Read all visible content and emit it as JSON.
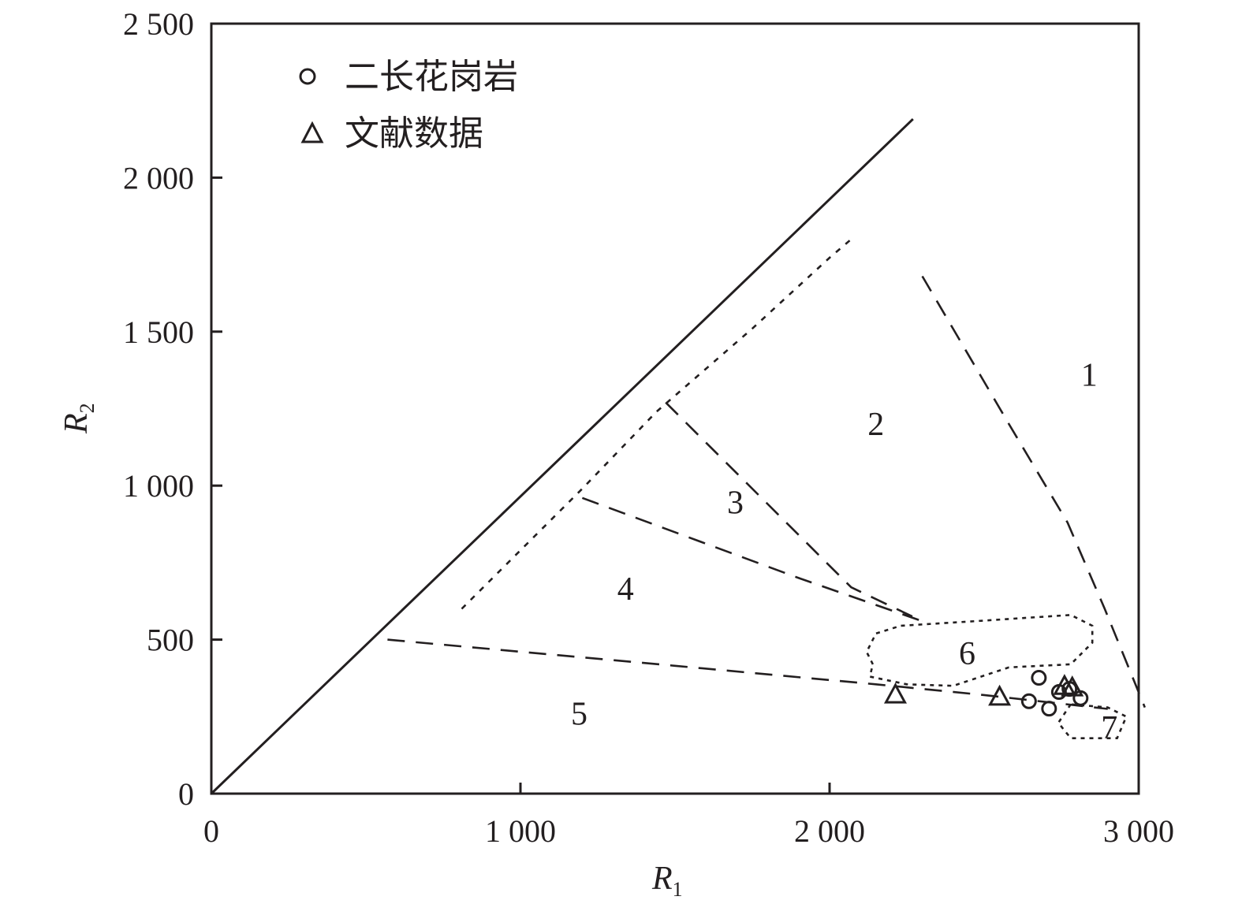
{
  "chart_data": {
    "type": "scatter",
    "title": "",
    "xlabel": "R",
    "xlabel_sub": "1",
    "ylabel": "R",
    "ylabel_sub": "2",
    "xlim": [
      0,
      3000
    ],
    "ylim": [
      0,
      2500
    ],
    "x_ticks": [
      {
        "value": 0,
        "label": "0"
      },
      {
        "value": 1000,
        "label": "1 000"
      },
      {
        "value": 2000,
        "label": "2 000"
      },
      {
        "value": 3000,
        "label": "3 000"
      }
    ],
    "y_ticks": [
      {
        "value": 0,
        "label": "0"
      },
      {
        "value": 500,
        "label": "500"
      },
      {
        "value": 1000,
        "label": "1 000"
      },
      {
        "value": 1500,
        "label": "1 500"
      },
      {
        "value": 2000,
        "label": "2 000"
      },
      {
        "value": 2500,
        "label": "2 500"
      }
    ],
    "grid": false,
    "legend_position": "top-left",
    "series": [
      {
        "name": "二长花岗岩",
        "marker": "circle",
        "points": [
          {
            "x": 2677,
            "y": 376
          },
          {
            "x": 2645,
            "y": 300
          },
          {
            "x": 2742,
            "y": 330
          },
          {
            "x": 2776,
            "y": 340
          },
          {
            "x": 2812,
            "y": 310
          },
          {
            "x": 2710,
            "y": 276
          }
        ]
      },
      {
        "name": "文献数据",
        "marker": "triangle",
        "points": [
          {
            "x": 2213,
            "y": 322
          },
          {
            "x": 2550,
            "y": 315
          },
          {
            "x": 2760,
            "y": 350
          },
          {
            "x": 2785,
            "y": 345
          }
        ]
      }
    ],
    "reference_lines": [
      {
        "style": "solid",
        "points": [
          [
            0,
            0
          ],
          [
            2270,
            2190
          ]
        ]
      },
      {
        "style": "short-dash",
        "points": [
          [
            810,
            600
          ],
          [
            1200,
            990
          ],
          [
            1440,
            1240
          ],
          [
            1750,
            1510
          ],
          [
            2000,
            1740
          ],
          [
            2070,
            1800
          ]
        ]
      },
      {
        "style": "long-dash",
        "points": [
          [
            2300,
            1680
          ],
          [
            2580,
            1200
          ],
          [
            2770,
            880
          ],
          [
            2890,
            600
          ],
          [
            3020,
            280
          ]
        ]
      },
      {
        "style": "long-dash",
        "points": [
          [
            1470,
            1270
          ],
          [
            1850,
            890
          ],
          [
            2070,
            670
          ],
          [
            2300,
            560
          ]
        ]
      },
      {
        "style": "long-dash",
        "points": [
          [
            1200,
            960
          ],
          [
            1900,
            700
          ],
          [
            2300,
            560
          ]
        ]
      },
      {
        "style": "long-dash",
        "points": [
          [
            570,
            500
          ],
          [
            1500,
            415
          ],
          [
            2150,
            355
          ],
          [
            2500,
            320
          ],
          [
            2900,
            275
          ]
        ]
      },
      {
        "style": "dotted-loop",
        "points": [
          [
            2140,
            420
          ],
          [
            2120,
            460
          ],
          [
            2150,
            520
          ],
          [
            2230,
            545
          ],
          [
            2470,
            560
          ],
          [
            2780,
            580
          ],
          [
            2850,
            545
          ],
          [
            2850,
            490
          ],
          [
            2780,
            420
          ],
          [
            2580,
            410
          ],
          [
            2400,
            350
          ],
          [
            2250,
            355
          ],
          [
            2130,
            380
          ],
          [
            2140,
            420
          ]
        ]
      },
      {
        "style": "dotted-loop",
        "points": [
          [
            2780,
            290
          ],
          [
            2740,
            230
          ],
          [
            2780,
            180
          ],
          [
            2930,
            180
          ],
          [
            2960,
            250
          ],
          [
            2900,
            280
          ],
          [
            2780,
            290
          ]
        ]
      }
    ],
    "region_labels": [
      {
        "label": "1",
        "x": 2840,
        "y": 1360
      },
      {
        "label": "2",
        "x": 2150,
        "y": 1200
      },
      {
        "label": "3",
        "x": 1695,
        "y": 945
      },
      {
        "label": "4",
        "x": 1340,
        "y": 665
      },
      {
        "label": "5",
        "x": 1190,
        "y": 260
      },
      {
        "label": "6",
        "x": 2445,
        "y": 455
      },
      {
        "label": "7",
        "x": 2905,
        "y": 215
      }
    ]
  }
}
